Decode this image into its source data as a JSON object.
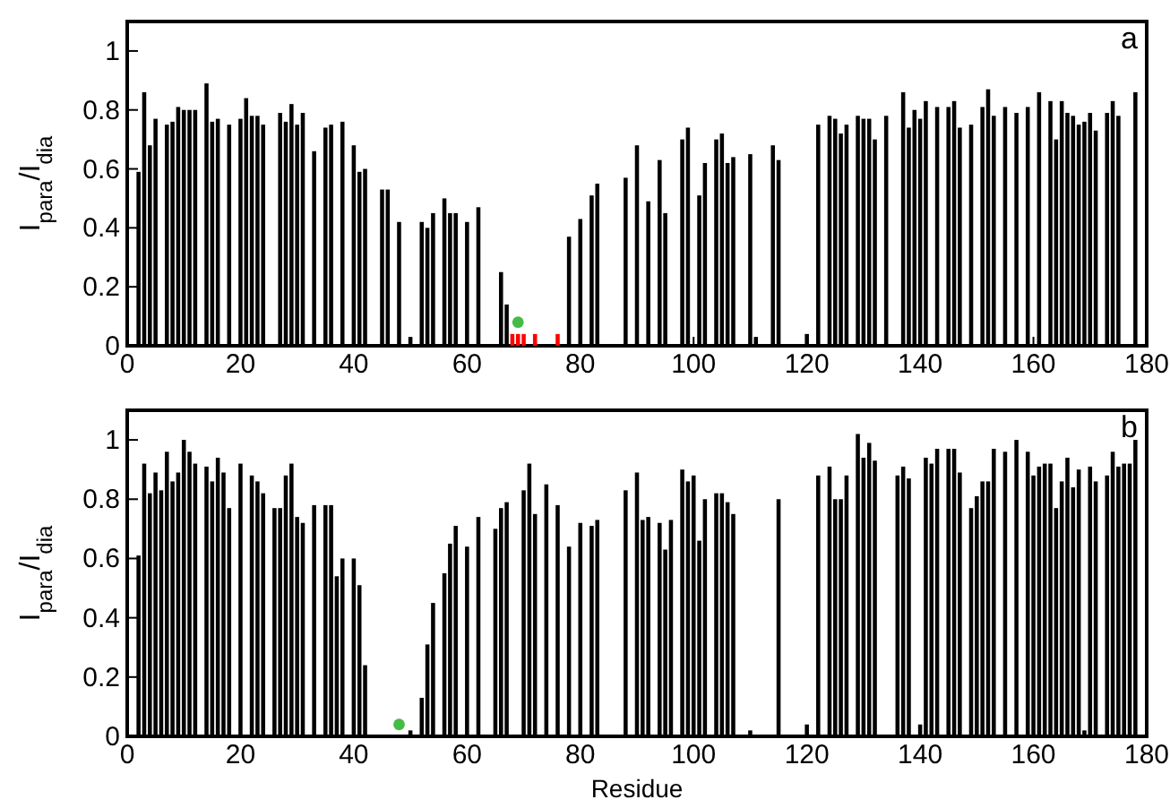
{
  "chart_data": [
    {
      "type": "bar",
      "ylabel": "I$_{para}$/I$_{dia}$",
      "annotations": [
        "a"
      ],
      "xlim": [
        0,
        180
      ],
      "xticks": [
        0,
        20,
        40,
        60,
        80,
        100,
        120,
        140,
        160,
        180
      ],
      "ylim": [
        0,
        1.1
      ],
      "yticks": [
        0,
        0.2,
        0.4,
        0.6,
        0.8,
        1
      ],
      "marker": "circle",
      "series": [
        {
          "color": "#000000",
          "x": [
            2,
            3,
            4,
            5,
            7,
            8,
            9,
            10,
            11,
            12,
            14,
            15,
            16,
            18,
            20,
            21,
            22,
            23,
            24,
            27,
            28,
            29,
            30,
            31,
            33,
            35,
            36,
            38,
            40,
            41,
            42,
            45,
            46,
            48,
            50,
            52,
            53,
            54,
            56,
            57,
            58,
            60,
            62,
            66,
            67,
            78,
            80,
            82,
            83,
            88,
            90,
            92,
            94,
            95,
            98,
            99,
            101,
            102,
            104,
            105,
            106,
            107,
            110,
            111,
            114,
            115,
            120,
            122,
            124,
            125,
            126,
            127,
            129,
            130,
            131,
            132,
            134,
            137,
            138,
            139,
            140,
            141,
            143,
            145,
            146,
            147,
            149,
            151,
            152,
            153,
            155,
            157,
            159,
            161,
            163,
            164,
            165,
            166,
            167,
            168,
            169,
            170,
            171,
            173,
            174,
            175,
            178
          ],
          "values": [
            0.59,
            0.86,
            0.68,
            0.77,
            0.75,
            0.76,
            0.81,
            0.8,
            0.8,
            0.8,
            0.89,
            0.76,
            0.77,
            0.75,
            0.77,
            0.84,
            0.78,
            0.78,
            0.75,
            0.79,
            0.76,
            0.82,
            0.75,
            0.79,
            0.66,
            0.74,
            0.75,
            0.76,
            0.68,
            0.59,
            0.6,
            0.53,
            0.53,
            0.42,
            0.03,
            0.42,
            0.4,
            0.45,
            0.5,
            0.45,
            0.45,
            0.42,
            0.47,
            0.25,
            0.14,
            0.37,
            0.43,
            0.51,
            0.55,
            0.57,
            0.68,
            0.49,
            0.63,
            0.45,
            0.7,
            0.74,
            0.51,
            0.62,
            0.7,
            0.72,
            0.62,
            0.64,
            0.65,
            0.03,
            0.68,
            0.63,
            0.04,
            0.75,
            0.78,
            0.77,
            0.72,
            0.75,
            0.78,
            0.77,
            0.77,
            0.7,
            0.78,
            0.86,
            0.74,
            0.8,
            0.77,
            0.83,
            0.81,
            0.81,
            0.83,
            0.74,
            0.75,
            0.81,
            0.87,
            0.78,
            0.81,
            0.79,
            0.81,
            0.86,
            0.83,
            0.7,
            0.83,
            0.79,
            0.78,
            0.75,
            0.76,
            0.79,
            0.73,
            0.79,
            0.83,
            0.78,
            0.86
          ]
        },
        {
          "color": "#ff0000",
          "x": [
            68,
            69,
            70,
            72,
            76
          ],
          "values": [
            0.04,
            0.04,
            0.04,
            0.04,
            0.04
          ]
        },
        {
          "type": "scatter",
          "color": "#44bb44",
          "x": [
            69
          ],
          "values": [
            0.08
          ]
        }
      ]
    },
    {
      "type": "bar",
      "xlabel": "Residue",
      "ylabel": "I$_{para}$/I$_{dia}$",
      "annotations": [
        "b"
      ],
      "xlim": [
        0,
        180
      ],
      "xticks": [
        0,
        20,
        40,
        60,
        80,
        100,
        120,
        140,
        160,
        180
      ],
      "ylim": [
        0,
        1.1
      ],
      "yticks": [
        0,
        0.2,
        0.4,
        0.6,
        0.8,
        1
      ],
      "marker": "circle",
      "series": [
        {
          "color": "#000000",
          "x": [
            2,
            3,
            4,
            5,
            6,
            7,
            8,
            9,
            10,
            11,
            12,
            14,
            15,
            16,
            17,
            18,
            20,
            22,
            23,
            24,
            26,
            27,
            28,
            29,
            30,
            31,
            33,
            35,
            36,
            37,
            38,
            40,
            41,
            42,
            50,
            52,
            53,
            54,
            56,
            57,
            58,
            60,
            62,
            65,
            66,
            67,
            70,
            71,
            72,
            74,
            76,
            78,
            80,
            82,
            83,
            88,
            90,
            91,
            92,
            94,
            95,
            96,
            98,
            99,
            100,
            101,
            102,
            104,
            105,
            106,
            107,
            110,
            115,
            120,
            122,
            124,
            125,
            126,
            127,
            129,
            130,
            131,
            132,
            136,
            137,
            138,
            140,
            141,
            142,
            143,
            145,
            146,
            147,
            149,
            150,
            151,
            152,
            153,
            155,
            157,
            159,
            160,
            161,
            162,
            163,
            164,
            165,
            166,
            167,
            168,
            169,
            170,
            171,
            173,
            174,
            175,
            176,
            177,
            178
          ],
          "values": [
            0.61,
            0.92,
            0.82,
            0.89,
            0.83,
            0.96,
            0.86,
            0.89,
            1.0,
            0.96,
            0.92,
            0.91,
            0.86,
            0.94,
            0.89,
            0.77,
            0.92,
            0.88,
            0.86,
            0.82,
            0.77,
            0.77,
            0.88,
            0.92,
            0.74,
            0.72,
            0.78,
            0.78,
            0.78,
            0.54,
            0.6,
            0.6,
            0.51,
            0.24,
            0.02,
            0.13,
            0.31,
            0.45,
            0.55,
            0.65,
            0.71,
            0.64,
            0.74,
            0.7,
            0.77,
            0.79,
            0.83,
            0.92,
            0.75,
            0.85,
            0.78,
            0.64,
            0.72,
            0.71,
            0.73,
            0.83,
            0.89,
            0.73,
            0.74,
            0.72,
            0.63,
            0.73,
            0.9,
            0.86,
            0.88,
            0.66,
            0.8,
            0.82,
            0.82,
            0.79,
            0.75,
            0.02,
            0.8,
            0.04,
            0.88,
            0.91,
            0.8,
            0.8,
            0.88,
            1.02,
            0.94,
            0.99,
            0.93,
            0.88,
            0.91,
            0.87,
            0.04,
            0.94,
            0.92,
            0.97,
            0.97,
            0.97,
            0.89,
            0.77,
            0.81,
            0.86,
            0.86,
            0.97,
            0.96,
            1.0,
            0.96,
            0.88,
            0.91,
            0.92,
            0.92,
            0.77,
            0.86,
            0.94,
            0.84,
            0.9,
            0.02,
            0.91,
            0.86,
            0.88,
            0.96,
            0.91,
            0.92,
            0.92,
            1.0
          ]
        },
        {
          "type": "scatter",
          "color": "#44bb44",
          "x": [
            48
          ],
          "values": [
            0.04
          ]
        }
      ]
    }
  ]
}
